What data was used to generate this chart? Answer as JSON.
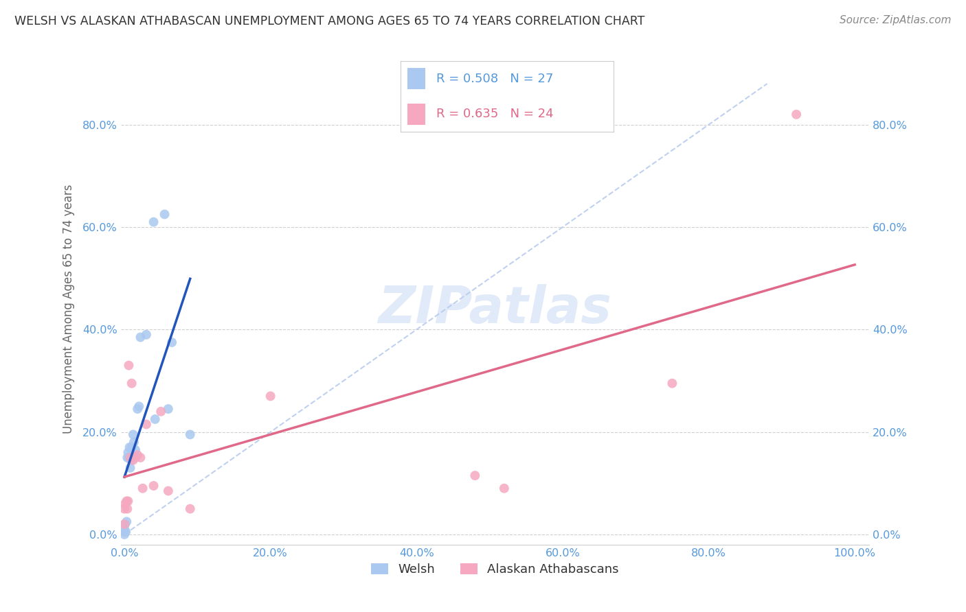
{
  "title": "WELSH VS ALASKAN ATHABASCAN UNEMPLOYMENT AMONG AGES 65 TO 74 YEARS CORRELATION CHART",
  "source": "Source: ZipAtlas.com",
  "ylabel": "Unemployment Among Ages 65 to 74 years",
  "background_color": "#ffffff",
  "grid_color": "#d0d0d0",
  "watermark_text": "ZIPatlas",
  "welsh_color": "#aac8f0",
  "welsh_edge_color": "#aac8f0",
  "alaskan_color": "#f5a8c0",
  "alaskan_edge_color": "#f5a8c0",
  "welsh_line_color": "#2255bb",
  "alaskan_line_color": "#e06888",
  "diag_line_color": "#b8ccee",
  "welsh_R": 0.508,
  "welsh_N": 27,
  "alaskan_R": 0.635,
  "alaskan_N": 24,
  "xlim": [
    -0.005,
    1.02
  ],
  "ylim": [
    -0.02,
    0.9
  ],
  "xtick_vals": [
    0.0,
    0.2,
    0.4,
    0.6,
    0.8,
    1.0
  ],
  "ytick_vals": [
    0.0,
    0.2,
    0.4,
    0.6,
    0.8
  ],
  "tick_color": "#5599dd",
  "ylabel_color": "#666666",
  "legend_text_color_welsh": "#5599dd",
  "legend_text_color_alaskan": "#e06888",
  "welsh_x": [
    0.0,
    0.0,
    0.0,
    0.001,
    0.002,
    0.003,
    0.004,
    0.005,
    0.006,
    0.007,
    0.008,
    0.009,
    0.01,
    0.01,
    0.012,
    0.013,
    0.015,
    0.018,
    0.02,
    0.022,
    0.03,
    0.04,
    0.042,
    0.055,
    0.06,
    0.065,
    0.09
  ],
  "welsh_y": [
    0.0,
    0.005,
    0.01,
    0.02,
    0.005,
    0.025,
    0.15,
    0.16,
    0.15,
    0.17,
    0.13,
    0.145,
    0.155,
    0.17,
    0.195,
    0.18,
    0.165,
    0.245,
    0.25,
    0.385,
    0.39,
    0.61,
    0.225,
    0.625,
    0.245,
    0.375,
    0.195
  ],
  "alaskan_x": [
    0.0,
    0.0,
    0.001,
    0.003,
    0.004,
    0.005,
    0.006,
    0.008,
    0.01,
    0.012,
    0.015,
    0.018,
    0.022,
    0.025,
    0.03,
    0.04,
    0.05,
    0.06,
    0.09,
    0.2,
    0.48,
    0.52,
    0.75,
    0.92
  ],
  "alaskan_y": [
    0.02,
    0.05,
    0.06,
    0.065,
    0.05,
    0.065,
    0.33,
    0.15,
    0.295,
    0.145,
    0.15,
    0.155,
    0.15,
    0.09,
    0.215,
    0.095,
    0.24,
    0.085,
    0.05,
    0.27,
    0.115,
    0.09,
    0.295,
    0.82
  ]
}
